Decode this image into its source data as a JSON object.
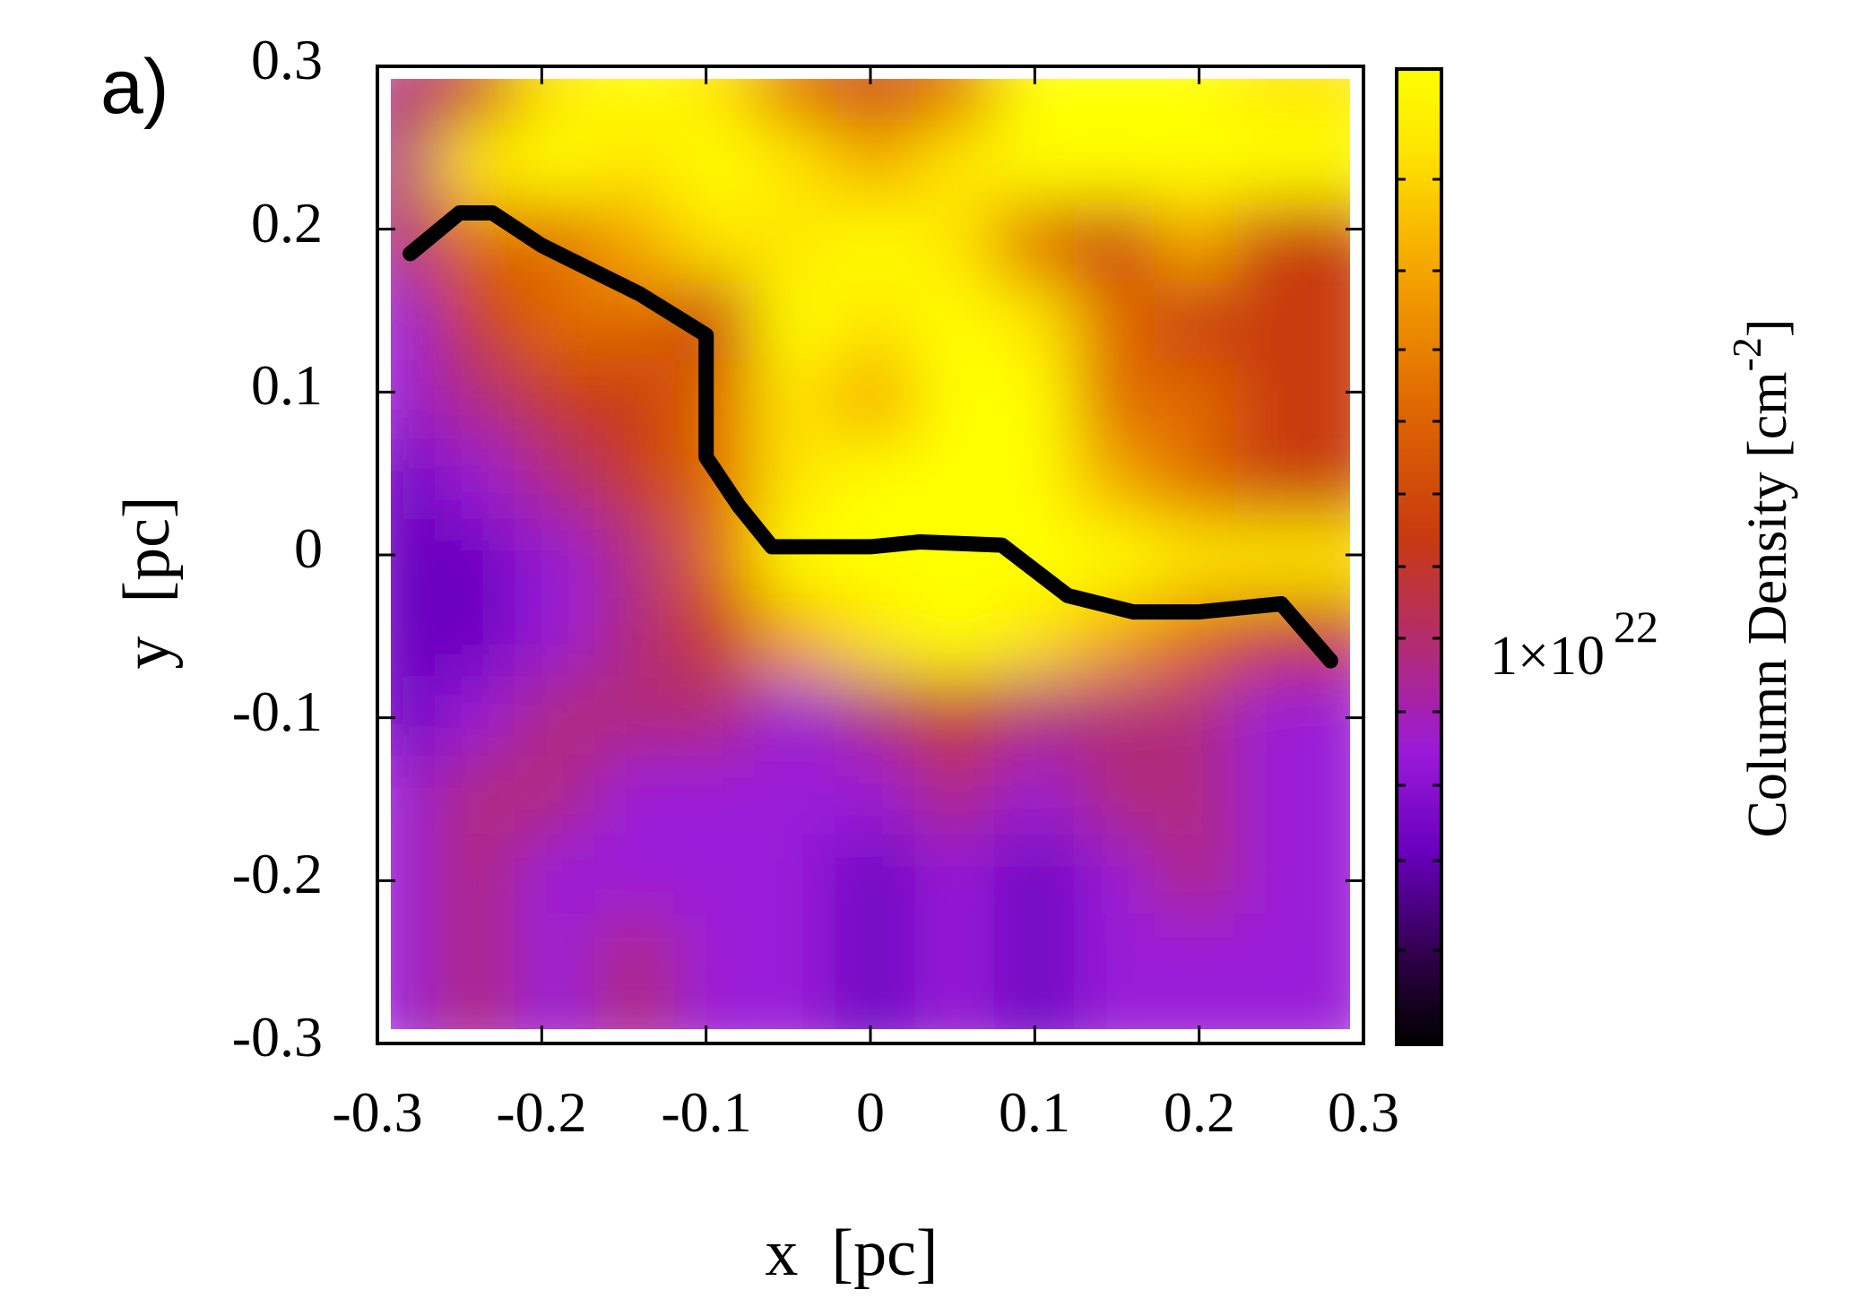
{
  "panel_label": "a)",
  "chart_data": {
    "type": "heatmap",
    "xlabel": "x  [pc]",
    "ylabel": "y  [pc]",
    "xlim": [
      -0.3,
      0.3
    ],
    "ylim": [
      -0.3,
      0.3
    ],
    "xticks": [
      "-0.3",
      "-0.2",
      "-0.1",
      "0",
      "0.1",
      "0.2",
      "0.3"
    ],
    "yticks": [
      "0.3",
      "0.2",
      "0.1",
      "0",
      "-0.1",
      "-0.2",
      "-0.3"
    ],
    "colorbar": {
      "label_main": "Column Density [cm",
      "label_exp": "-2",
      "label_close": "]",
      "tick_label_mantissa": "1×10",
      "tick_label_exp": "22",
      "tick_value": 1e+22,
      "colors": [
        "#000000",
        "#2a0040",
        "#6a00c0",
        "#9a1ad8",
        "#b02a7a",
        "#c83a10",
        "#e06a00",
        "#f5a800",
        "#ffe600",
        "#ffff00"
      ]
    },
    "filament_spine": [
      [
        -0.28,
        0.185
      ],
      [
        -0.25,
        0.21
      ],
      [
        -0.23,
        0.21
      ],
      [
        -0.2,
        0.19
      ],
      [
        -0.14,
        0.16
      ],
      [
        -0.1,
        0.135
      ],
      [
        -0.1,
        0.06
      ],
      [
        -0.08,
        0.03
      ],
      [
        -0.06,
        0.005
      ],
      [
        -0.04,
        0.005
      ],
      [
        0.0,
        0.005
      ],
      [
        0.03,
        0.008
      ],
      [
        0.08,
        0.006
      ],
      [
        0.12,
        -0.025
      ],
      [
        0.16,
        -0.035
      ],
      [
        0.2,
        -0.035
      ],
      [
        0.25,
        -0.03
      ],
      [
        0.28,
        -0.065
      ]
    ],
    "density_map": [
      [
        4,
        5,
        8,
        9,
        8,
        6,
        5,
        6,
        9,
        9,
        9,
        8
      ],
      [
        4,
        8,
        9,
        8,
        9,
        8,
        7,
        8,
        9,
        9,
        9,
        9
      ],
      [
        4,
        6,
        6,
        7,
        8,
        8,
        9,
        8,
        6,
        5,
        7,
        5
      ],
      [
        3,
        5,
        6,
        6,
        5,
        9,
        8,
        9,
        8,
        6,
        5,
        5
      ],
      [
        3,
        4,
        5,
        5,
        6,
        8,
        7,
        9,
        9,
        6,
        6,
        5
      ],
      [
        2,
        3,
        4,
        5,
        6,
        8,
        9,
        9,
        9,
        7,
        6,
        5
      ],
      [
        2,
        2,
        3,
        4,
        6,
        9,
        9,
        9,
        9,
        9,
        8,
        8
      ],
      [
        2,
        2,
        3,
        4,
        5,
        7,
        8,
        9,
        8,
        7,
        6,
        5
      ],
      [
        2,
        3,
        4,
        4,
        4,
        3,
        4,
        5,
        4,
        4,
        4,
        3
      ],
      [
        3,
        4,
        4,
        3,
        3,
        3,
        3,
        4,
        3,
        4,
        4,
        3
      ],
      [
        3,
        4,
        3,
        3,
        3,
        3,
        2,
        3,
        2,
        3,
        4,
        3
      ],
      [
        3,
        4,
        3,
        4,
        3,
        3,
        2,
        3,
        2,
        3,
        3,
        3
      ]
    ]
  }
}
